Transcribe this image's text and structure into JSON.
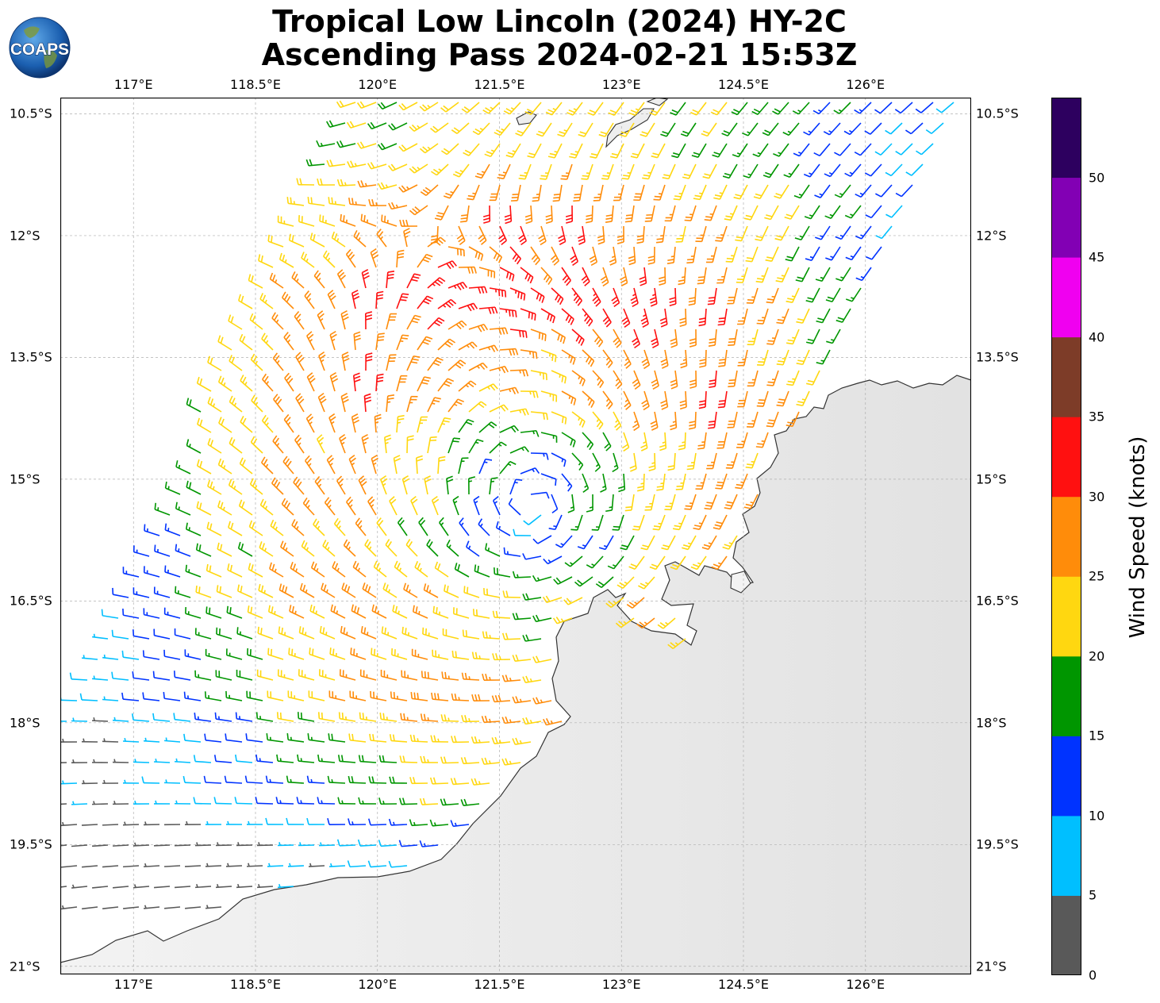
{
  "title": {
    "line1": "Tropical Low Lincoln (2024) HY-2C",
    "line2": "Ascending Pass 2024-02-21 15:53Z"
  },
  "logo": {
    "text": "COAPS",
    "icon": "globe-logo-icon"
  },
  "map": {
    "lon_ticks": [
      "117°E",
      "118.5°E",
      "120°E",
      "121.5°E",
      "123°E",
      "124.5°E",
      "126°E"
    ],
    "lat_ticks": [
      "10.5°S",
      "12°S",
      "13.5°S",
      "15°S",
      "16.5°S",
      "18°S",
      "19.5°S",
      "21°S"
    ],
    "lon_range": [
      116.1,
      127.3
    ],
    "lat_range": [
      -21.1,
      -10.3
    ],
    "land_color": "#e8e8e8",
    "coast_color": "#333333",
    "storm_center": {
      "lon": 121.9,
      "lat": -15.3
    }
  },
  "colorbar": {
    "title": "Wind Speed (knots)",
    "labels": [
      "0",
      "5",
      "10",
      "15",
      "20",
      "25",
      "30",
      "35",
      "40",
      "45",
      "50"
    ],
    "bins": [
      {
        "min": 0,
        "max": 5,
        "color": "#595959"
      },
      {
        "min": 5,
        "max": 10,
        "color": "#00bfff"
      },
      {
        "min": 10,
        "max": 15,
        "color": "#0033ff"
      },
      {
        "min": 15,
        "max": 20,
        "color": "#009600"
      },
      {
        "min": 20,
        "max": 25,
        "color": "#ffd710"
      },
      {
        "min": 25,
        "max": 30,
        "color": "#ff8c0a"
      },
      {
        "min": 30,
        "max": 35,
        "color": "#ff1010"
      },
      {
        "min": 35,
        "max": 40,
        "color": "#7d3c28"
      },
      {
        "min": 40,
        "max": 45,
        "color": "#f000f0"
      },
      {
        "min": 45,
        "max": 50,
        "color": "#8200b4"
      },
      {
        "min": 50,
        "max": 55,
        "color": "#2d005f"
      }
    ]
  }
}
